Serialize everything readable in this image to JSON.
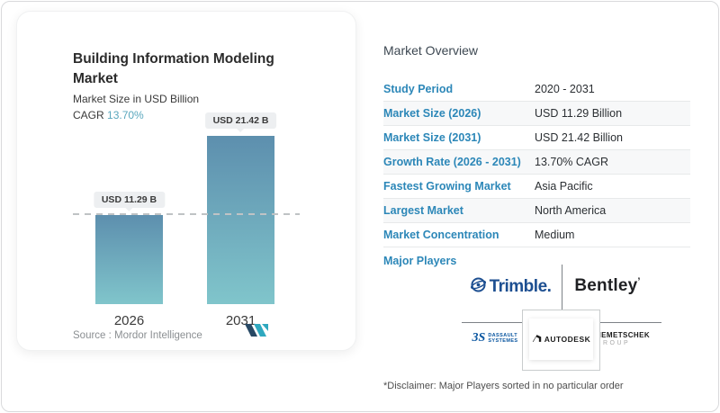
{
  "card": {
    "title": "Building Information Modeling Market",
    "subtitle": "Market Size in USD Billion",
    "cagr_label": "CAGR",
    "cagr_value": "13.70%",
    "source_label": "Source :",
    "source_name": "Mordor Intelligence"
  },
  "chart_data": {
    "type": "bar",
    "title": "Building Information Modeling Market",
    "ylabel": "Market Size in USD Billion",
    "categories": [
      "2026",
      "2031"
    ],
    "values": [
      11.29,
      21.42
    ],
    "bar_labels": [
      "USD 11.29 B",
      "USD 21.42 B"
    ],
    "ylim": [
      0,
      24
    ],
    "dashed_line_at": 11.29,
    "grid": "single dashed reference line at 2026 value",
    "legend": "none",
    "bar_color_top": "#5d8fae",
    "bar_color_bottom": "#80c5cb"
  },
  "overview": {
    "title": "Market Overview",
    "rows": [
      {
        "label": "Study Period",
        "value": "2020 - 2031"
      },
      {
        "label": "Market Size (2026)",
        "value": "USD 11.29 Billion"
      },
      {
        "label": "Market Size (2031)",
        "value": "USD 21.42 Billion"
      },
      {
        "label": "Growth Rate (2026 - 2031)",
        "value": "13.70% CAGR"
      },
      {
        "label": "Fastest Growing Market",
        "value": "Asia Pacific"
      },
      {
        "label": "Largest Market",
        "value": "North America"
      },
      {
        "label": "Market Concentration",
        "value": "Medium"
      }
    ],
    "major_players_label": "Major Players",
    "players": {
      "trimble": {
        "name": "Trimble",
        "text": "Trimble."
      },
      "bentley": {
        "name": "Bentley",
        "text": "Bentley",
        "mark": "’"
      },
      "dassault": {
        "name": "Dassault Systemes",
        "mark": "3S",
        "line1": "DASSAULT",
        "line2": "SYSTEMES"
      },
      "autodesk": {
        "name": "Autodesk",
        "text": "AUTODESK"
      },
      "nemetschek": {
        "name": "Nemetschek Group",
        "line1": "NEMETSCHEK",
        "line2": "GROUP"
      }
    },
    "disclaimer": "*Disclaimer: Major Players sorted in no particular order"
  },
  "colors": {
    "accent_blue": "#2c87b8",
    "cagr_teal": "#5aa7bd",
    "bar_gradient_top": "#5d8fae",
    "bar_gradient_bottom": "#80c5cb",
    "trimble_blue": "#1d4f91",
    "dassault_blue": "#0a56a0"
  }
}
